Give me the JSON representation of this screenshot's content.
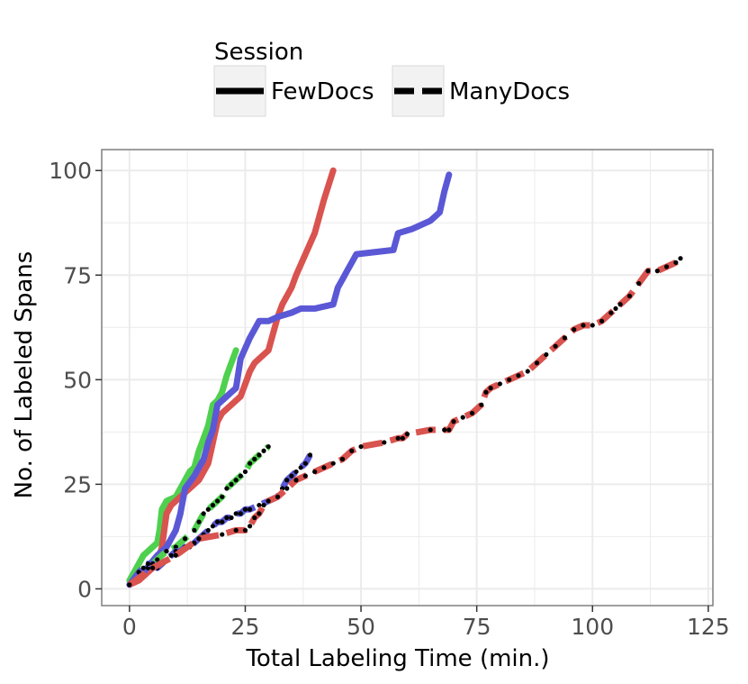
{
  "chart_data": {
    "type": "line",
    "xlabel": "Total Labeling Time (min.)",
    "ylabel": "No. of Labeled Spans",
    "xlim": [
      -6,
      126
    ],
    "ylim": [
      -4,
      105
    ],
    "xticks": [
      0,
      25,
      50,
      75,
      100,
      125
    ],
    "yticks": [
      0,
      25,
      50,
      75,
      100
    ],
    "xtick_labels": [
      "0",
      "25",
      "50",
      "75",
      "100",
      "125"
    ],
    "ytick_labels": [
      "0",
      "25",
      "50",
      "75",
      "100"
    ],
    "grid": true,
    "legend": {
      "title": "Session",
      "placement": "top",
      "entries": [
        {
          "label": "FewDocs",
          "linestyle": "solid"
        },
        {
          "label": "ManyDocs",
          "linestyle": "dashed"
        }
      ]
    },
    "colors": {
      "red": "#d9534f",
      "blue": "#5b58d6",
      "green": "#4fd04f",
      "dots": "#000000",
      "grid": "#ebebeb",
      "panel_border": "#7f7f7f"
    },
    "series": [
      {
        "session": "FewDocs",
        "color": "#4fd04f",
        "linestyle": "solid",
        "x": [
          0,
          1,
          2,
          3,
          4,
          5,
          6,
          6.5,
          7,
          8,
          10,
          11,
          12,
          13,
          14,
          15,
          16,
          17,
          18,
          19,
          20,
          21,
          22,
          23
        ],
        "y": [
          2,
          4,
          6,
          8,
          9,
          10,
          11,
          14,
          19,
          21,
          22,
          24,
          26,
          28,
          29,
          33,
          36,
          39,
          44,
          45,
          47,
          51,
          54,
          57
        ]
      },
      {
        "session": "FewDocs",
        "color": "#d9534f",
        "linestyle": "solid",
        "x": [
          0,
          2,
          4,
          6,
          7,
          8,
          9,
          11,
          13,
          15,
          16,
          17,
          18,
          19,
          20,
          22,
          24,
          25,
          26,
          27,
          28,
          30,
          31,
          32,
          33,
          35,
          36,
          38,
          40,
          42,
          44
        ],
        "y": [
          1,
          2,
          4,
          6,
          10,
          18,
          20,
          22,
          24,
          26,
          28,
          30,
          35,
          40,
          42,
          44,
          46,
          49,
          52,
          54,
          55,
          57,
          61,
          65,
          68,
          72,
          75,
          80,
          85,
          93,
          100
        ]
      },
      {
        "session": "FewDocs",
        "color": "#5b58d6",
        "linestyle": "solid",
        "x": [
          0,
          3,
          6,
          8,
          9,
          10,
          11,
          12,
          14,
          16,
          17,
          18,
          19,
          21,
          22,
          23,
          24,
          26,
          27,
          28,
          30,
          32,
          35,
          37,
          40,
          44,
          45,
          46,
          47,
          48,
          49,
          57,
          58,
          61,
          63,
          65,
          66,
          67,
          68,
          69
        ],
        "y": [
          1,
          4,
          8,
          10,
          12,
          14,
          18,
          24,
          27,
          31,
          35,
          38,
          44,
          46,
          47,
          48,
          55,
          60,
          62,
          64,
          64,
          65,
          66,
          67,
          67,
          68,
          72,
          74,
          76,
          78,
          80,
          81,
          85,
          86,
          87,
          88,
          89,
          90,
          95,
          99
        ]
      },
      {
        "session": "ManyDocs",
        "color": "#4fd04f",
        "linestyle": "dashed",
        "x": [
          0,
          2,
          4,
          6,
          8,
          10,
          12,
          14,
          15,
          16,
          17,
          18,
          19,
          20,
          21,
          22,
          23,
          24,
          25,
          26,
          27,
          28,
          29,
          30
        ],
        "y": [
          1,
          3,
          5,
          7,
          9,
          10,
          12,
          14,
          16,
          18,
          19,
          20,
          21,
          22,
          24,
          25,
          26,
          27,
          28,
          30,
          31,
          32,
          33,
          34
        ]
      },
      {
        "session": "ManyDocs",
        "color": "#5b58d6",
        "linestyle": "dashed",
        "x": [
          0,
          2,
          3,
          4,
          5,
          6,
          7,
          8,
          9,
          10,
          11,
          12,
          13,
          14,
          15,
          16,
          17,
          18,
          19,
          20,
          21,
          22,
          23,
          24,
          25,
          26,
          28,
          30,
          32,
          33,
          34,
          35,
          36,
          37,
          38,
          39
        ],
        "y": [
          1,
          4,
          5,
          6,
          6,
          5,
          6,
          7,
          8,
          9,
          9,
          10,
          10,
          11,
          12,
          13,
          14,
          15,
          16,
          16,
          17,
          17,
          18,
          18,
          19,
          19,
          20,
          21,
          22,
          24,
          26,
          27,
          28,
          29,
          30,
          32
        ]
      },
      {
        "session": "ManyDocs",
        "color": "#d9534f",
        "linestyle": "dashed",
        "x": [
          0,
          5,
          10,
          15,
          20,
          23,
          25,
          26,
          27,
          28,
          29,
          30,
          32,
          34,
          36,
          38,
          40,
          42,
          44,
          46,
          48,
          50,
          55,
          58,
          59,
          60,
          65,
          68,
          69,
          70,
          72,
          74,
          76,
          77,
          78,
          80,
          82,
          84,
          86,
          88,
          90,
          92,
          94,
          96,
          98,
          100,
          102,
          104,
          105,
          106,
          108,
          110,
          112,
          114,
          116,
          118,
          119
        ],
        "y": [
          1,
          5,
          8,
          12,
          13,
          14,
          14,
          15,
          17,
          18,
          20,
          21,
          22,
          24,
          26,
          27,
          28,
          29,
          30,
          31,
          33,
          34,
          35,
          36,
          36,
          37,
          38,
          38,
          38,
          40,
          41,
          42,
          44,
          47,
          48,
          49,
          50,
          51,
          52,
          54,
          56,
          58,
          60,
          62,
          63,
          63,
          64,
          66,
          67,
          68,
          70,
          73,
          76,
          76,
          77,
          78,
          79
        ]
      }
    ]
  }
}
